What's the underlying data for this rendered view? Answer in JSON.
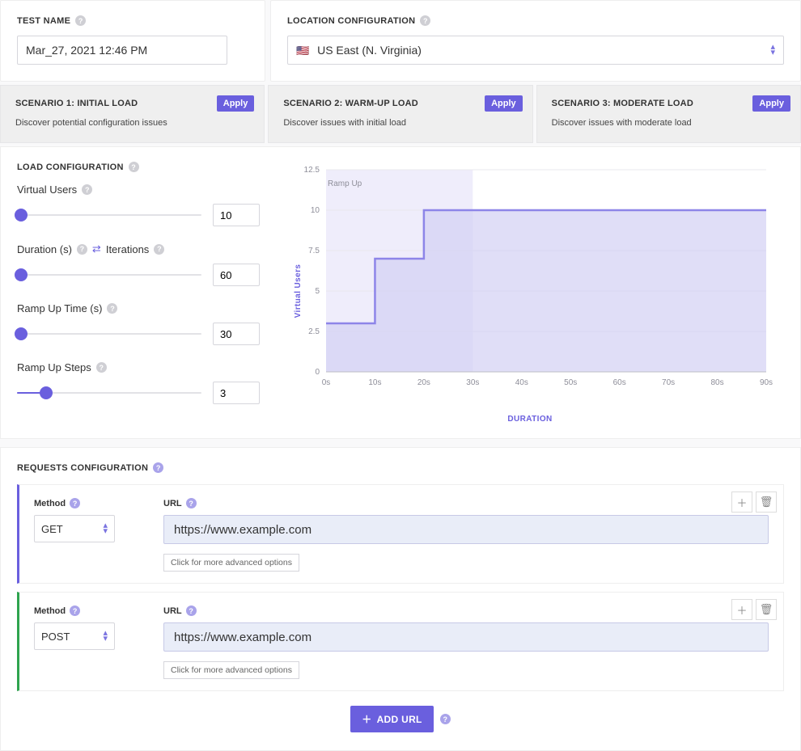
{
  "test_name": {
    "label": "TEST NAME",
    "value": "Mar_27, 2021 12:46 PM"
  },
  "location": {
    "label": "LOCATION CONFIGURATION",
    "flag": "🇺🇸",
    "value": "US East (N. Virginia)"
  },
  "scenarios": [
    {
      "title": "SCENARIO 1: INITIAL LOAD",
      "desc": "Discover potential configuration issues",
      "apply": "Apply"
    },
    {
      "title": "SCENARIO 2: WARM-UP LOAD",
      "desc": "Discover issues with initial load",
      "apply": "Apply"
    },
    {
      "title": "SCENARIO 3: MODERATE LOAD",
      "desc": "Discover issues with moderate load",
      "apply": "Apply"
    }
  ],
  "load": {
    "header": "LOAD CONFIGURATION",
    "controls": {
      "virtual_users": {
        "label": "Virtual Users",
        "value": "10",
        "pct": 2
      },
      "duration": {
        "label": "Duration (s)",
        "alt_label": "Iterations",
        "value": "60",
        "pct": 2
      },
      "ramp_time": {
        "label": "Ramp Up Time (s)",
        "value": "30",
        "pct": 2
      },
      "ramp_steps": {
        "label": "Ramp Up Steps",
        "value": "3",
        "pct": 16
      }
    },
    "chart": {
      "ramp_label": "Ramp Up",
      "y_label": "Virtual Users",
      "x_label": "DURATION",
      "ylim": [
        0,
        12.5
      ],
      "yticks": [
        0,
        2.5,
        5,
        7.5,
        10,
        12.5
      ],
      "xlim": [
        0,
        90
      ],
      "xticks": [
        0,
        10,
        20,
        30,
        40,
        50,
        60,
        70,
        80,
        90
      ],
      "steps_x": [
        0,
        10,
        10,
        20,
        20,
        30,
        30,
        90
      ],
      "steps_y": [
        3,
        3,
        7,
        7,
        10,
        10,
        10,
        10
      ],
      "ramp_shade_end_x": 30,
      "colors": {
        "line": "#8d85e8",
        "area": "#d3d0f4",
        "ramp_bg": "#efedfb",
        "grid": "#e8e8ee",
        "axis_text": "#8e8e99",
        "axis_label": "#6a5fde",
        "background": "#ffffff"
      },
      "font": {
        "tick_size": 10,
        "axis_label_size": 10
      }
    }
  },
  "requests": {
    "header": "REQUESTS CONFIGURATION",
    "method_label": "Method",
    "url_label": "URL",
    "adv": "Click for more advanced options",
    "add_url": "ADD URL",
    "items": [
      {
        "accent": "#6a5fde",
        "method": "GET",
        "url": "https://www.example.com"
      },
      {
        "accent": "#2fa44f",
        "method": "POST",
        "url": "https://www.example.com"
      }
    ]
  }
}
